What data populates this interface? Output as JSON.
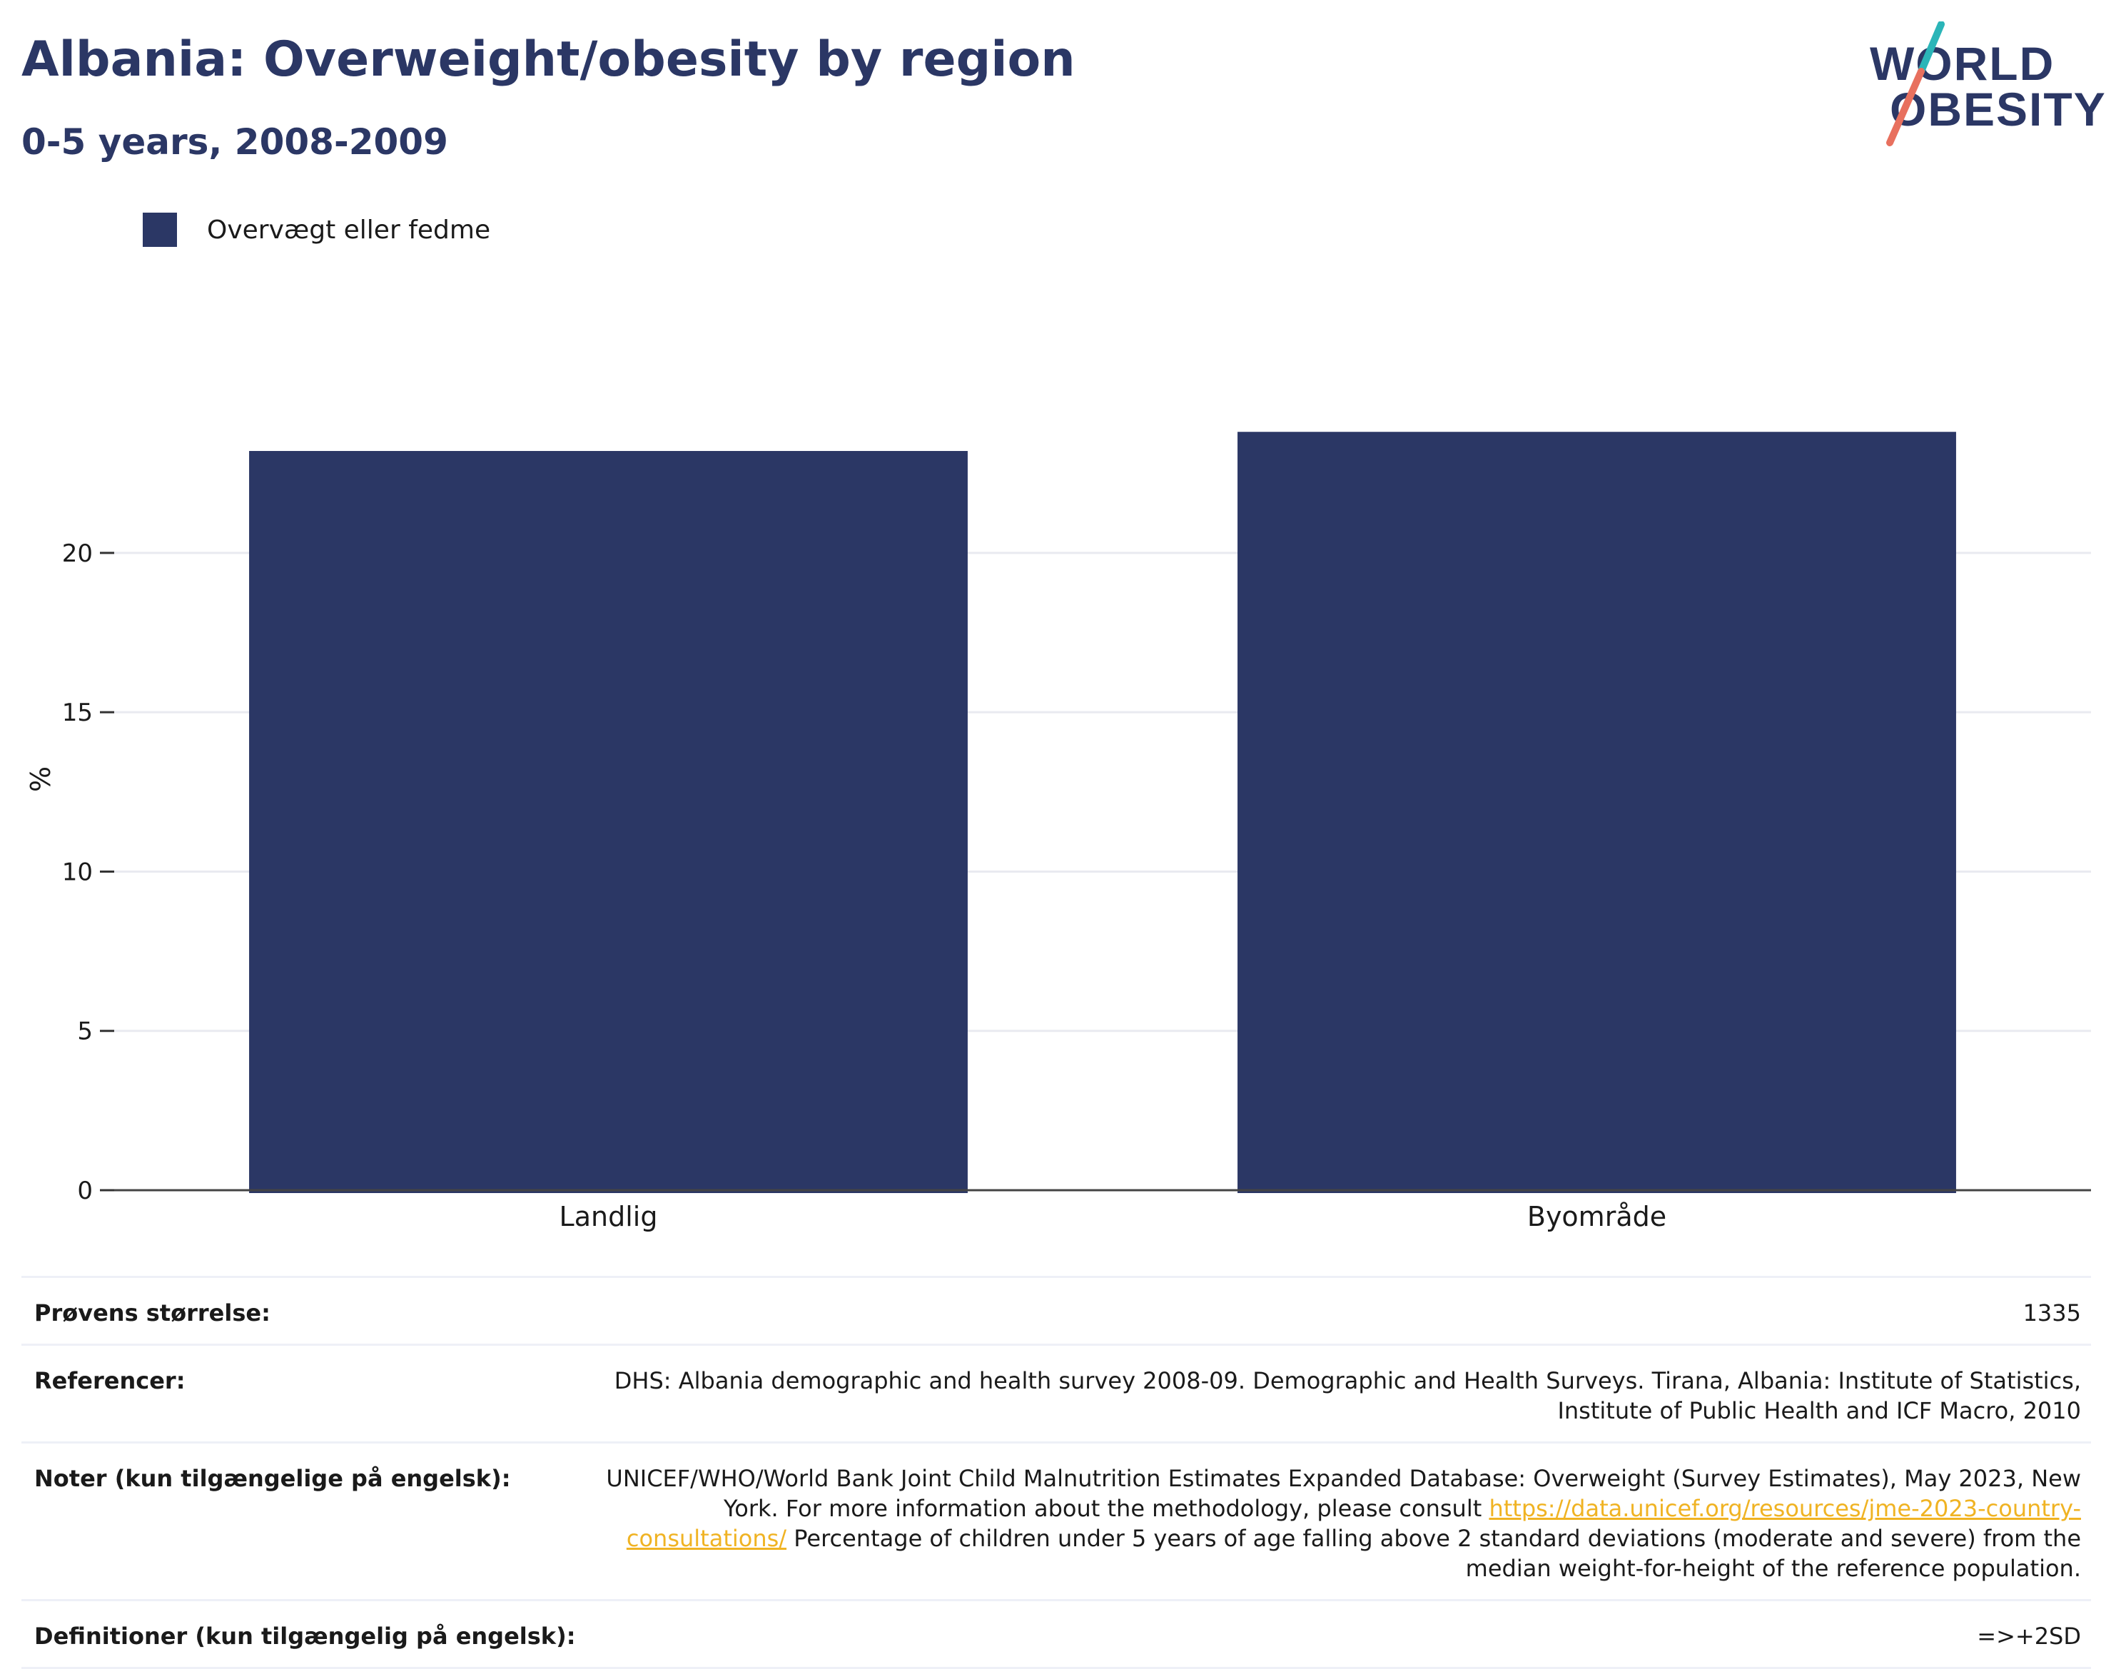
{
  "title": "Albania: Overweight/obesity by region",
  "subtitle": "0-5 years, 2008-2009",
  "logo": {
    "line1": "WORLD",
    "line2": "OBESITY"
  },
  "colors": {
    "bar": "#2b3765",
    "title": "#2b3765",
    "link": "#f0b323",
    "logo_teal": "#2bb5b8",
    "logo_coral": "#e8705e"
  },
  "chart_data": {
    "type": "bar",
    "categories": [
      "Landlig",
      "Byområde"
    ],
    "series": [
      {
        "name": "Overvægt eller fedme",
        "values": [
          23.2,
          23.8
        ]
      }
    ],
    "ylabel": "%",
    "xlabel": "",
    "ylim": [
      0,
      27.5
    ],
    "yticks": [
      0,
      5,
      10,
      15,
      20
    ],
    "grid": true,
    "legend": "top-left"
  },
  "footer": {
    "sample_label": "Prøvens størrelse:",
    "sample_value": "1335",
    "refs_label": "Referencer:",
    "refs_value": "DHS: Albania demographic and health survey 2008-09. Demographic and Health Surveys. Tirana, Albania: Institute of Statistics, Institute of Public Health and ICF Macro, 2010",
    "notes_label": "Noter (kun tilgængelige på engelsk):",
    "notes_pre": "UNICEF/WHO/World Bank Joint Child Malnutrition Estimates Expanded Database: Overweight (Survey Estimates), May 2023, New York. For more information about the methodology, please consult ",
    "notes_link": "https://data.unicef.org/resources/jme-2023-country-consultations/",
    "notes_post": " Percentage of children under 5 years of age falling above 2 standard deviations (moderate and severe) from the median weight-for-height of the reference population.",
    "defs_label": "Definitioner (kun tilgængelig på engelsk):",
    "defs_value": "=>+2SD"
  }
}
